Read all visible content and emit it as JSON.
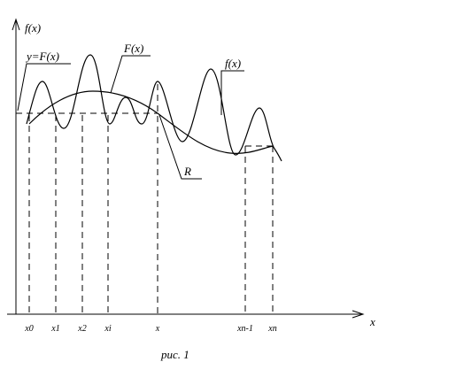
{
  "axes": {
    "y_label": "f(x)",
    "x_label": "x"
  },
  "curve_labels": {
    "y_eq": "y=F(x)",
    "F": "F(x)",
    "f": "f(x)",
    "R": "R"
  },
  "ticks": [
    "x0",
    "x1",
    "x2",
    "xi",
    "x",
    "xn-1",
    "xn"
  ],
  "caption": "рис. 1"
}
